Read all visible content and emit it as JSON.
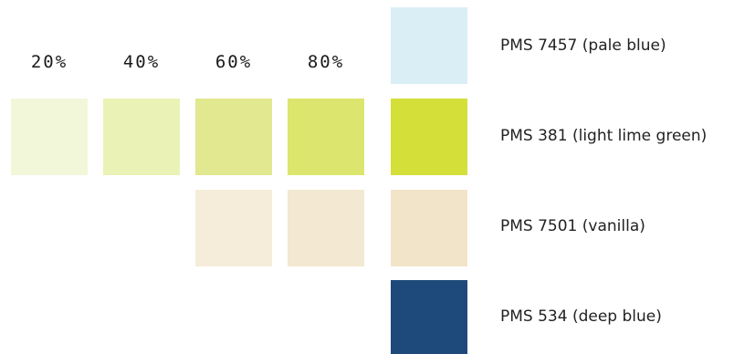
{
  "percent_headers": [
    "20%",
    "40%",
    "60%",
    "80%"
  ],
  "colors": [
    {
      "label": "PMS 7457 (pale blue)",
      "swatch": "#daeef6",
      "tints": []
    },
    {
      "label": "PMS 381 (light lime green)",
      "swatch": "#d4df3a",
      "tints": [
        "#f3f7da",
        "#ebf2b5",
        "#e1e88f",
        "#dce56d"
      ]
    },
    {
      "label": "PMS 7501 (vanilla)",
      "swatch": "#f2e4c8",
      "tints": [
        null,
        null,
        "#f5ecd9",
        "#f3e8d2"
      ]
    },
    {
      "label": "PMS 534 (deep blue)",
      "swatch": "#1d4a7b",
      "tints": []
    }
  ]
}
